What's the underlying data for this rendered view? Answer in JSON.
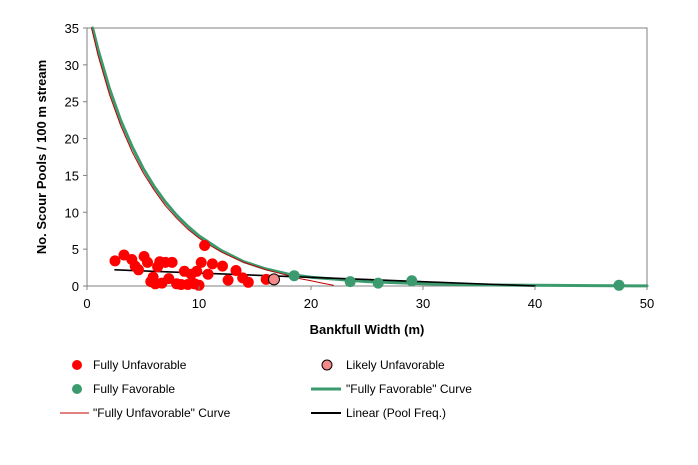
{
  "chart_data": {
    "type": "scatter",
    "xlabel": "Bankfull Width (m)",
    "ylabel": "No. Scour Pools / 100 m stream",
    "xlim": [
      0,
      50
    ],
    "ylim": [
      0,
      35
    ],
    "x_ticks": [
      "0",
      "10",
      "20",
      "30",
      "40",
      "50"
    ],
    "y_ticks": [
      "0",
      "5",
      "10",
      "15",
      "20",
      "25",
      "30",
      "35"
    ],
    "grid": false,
    "legend_position": "bottom",
    "series": [
      {
        "name": "Fully Unfavorable",
        "kind": "points",
        "color": "#ff0000",
        "points": [
          [
            2.5,
            3.4
          ],
          [
            3.3,
            4.2
          ],
          [
            4.0,
            3.6
          ],
          [
            4.3,
            2.7
          ],
          [
            4.6,
            2.2
          ],
          [
            5.1,
            4.0
          ],
          [
            5.4,
            3.2
          ],
          [
            5.7,
            0.6
          ],
          [
            5.9,
            1.2
          ],
          [
            6.1,
            0.3
          ],
          [
            6.3,
            2.6
          ],
          [
            6.5,
            3.3
          ],
          [
            6.7,
            0.4
          ],
          [
            7.0,
            3.2
          ],
          [
            7.3,
            1.0
          ],
          [
            7.6,
            3.2
          ],
          [
            8.0,
            0.3
          ],
          [
            8.4,
            0.2
          ],
          [
            8.7,
            2.0
          ],
          [
            9.0,
            0.2
          ],
          [
            9.3,
            1.6
          ],
          [
            9.6,
            0.3
          ],
          [
            9.8,
            2.0
          ],
          [
            10.0,
            0.1
          ],
          [
            10.2,
            3.2
          ],
          [
            10.5,
            5.5
          ],
          [
            10.8,
            1.6
          ],
          [
            11.2,
            3.0
          ],
          [
            12.1,
            2.7
          ],
          [
            12.6,
            0.8
          ],
          [
            13.3,
            2.1
          ],
          [
            13.9,
            1.1
          ],
          [
            14.4,
            0.5
          ],
          [
            16.0,
            0.9
          ]
        ]
      },
      {
        "name": "Likely Unfavorable",
        "kind": "points",
        "color": "#f48a8a",
        "points": [
          [
            16.7,
            0.9
          ]
        ]
      },
      {
        "name": "Fully Favorable",
        "kind": "points",
        "color": "#3b9a6e",
        "points": [
          [
            18.5,
            1.4
          ],
          [
            23.5,
            0.6
          ],
          [
            26.0,
            0.4
          ],
          [
            29.0,
            0.7
          ],
          [
            47.5,
            0.1
          ]
        ]
      },
      {
        "name": "\"Fully Favorable\" Curve",
        "kind": "line",
        "color": "#3b9a6e",
        "points": [
          [
            0.5,
            35
          ],
          [
            1,
            32
          ],
          [
            2,
            26.8
          ],
          [
            3,
            22.5
          ],
          [
            4,
            19.0
          ],
          [
            5,
            16.0
          ],
          [
            6,
            13.5
          ],
          [
            7,
            11.4
          ],
          [
            8,
            9.6
          ],
          [
            9,
            8.1
          ],
          [
            10,
            6.8
          ],
          [
            12,
            4.8
          ],
          [
            14,
            3.3
          ],
          [
            16,
            2.3
          ],
          [
            18,
            1.6
          ],
          [
            20,
            1.2
          ],
          [
            25,
            0.6
          ],
          [
            30,
            0.3
          ],
          [
            35,
            0.15
          ],
          [
            40,
            0.1
          ],
          [
            45,
            0.05
          ],
          [
            50,
            0.02
          ]
        ]
      },
      {
        "name": "\"Fully Unfavorable\" Curve",
        "kind": "line",
        "color": "#c00000",
        "points": [
          [
            0.4,
            35
          ],
          [
            1,
            31.2
          ],
          [
            2,
            26.0
          ],
          [
            3,
            21.8
          ],
          [
            4,
            18.3
          ],
          [
            5,
            15.4
          ],
          [
            6,
            13.0
          ],
          [
            7,
            10.9
          ],
          [
            8,
            9.2
          ],
          [
            9,
            7.7
          ],
          [
            10,
            6.5
          ],
          [
            11,
            5.5
          ],
          [
            12,
            4.6
          ],
          [
            13,
            3.9
          ],
          [
            14,
            3.2
          ],
          [
            15,
            2.7
          ],
          [
            16,
            2.2
          ],
          [
            17,
            1.8
          ],
          [
            18,
            1.4
          ],
          [
            19,
            1.0
          ],
          [
            20,
            0.7
          ],
          [
            21,
            0.4
          ],
          [
            22,
            0.1
          ]
        ]
      },
      {
        "name": "Linear (Pool Freq.)",
        "kind": "line",
        "color": "#000000",
        "points": [
          [
            2.5,
            2.2
          ],
          [
            40,
            0.0
          ]
        ]
      }
    ]
  }
}
